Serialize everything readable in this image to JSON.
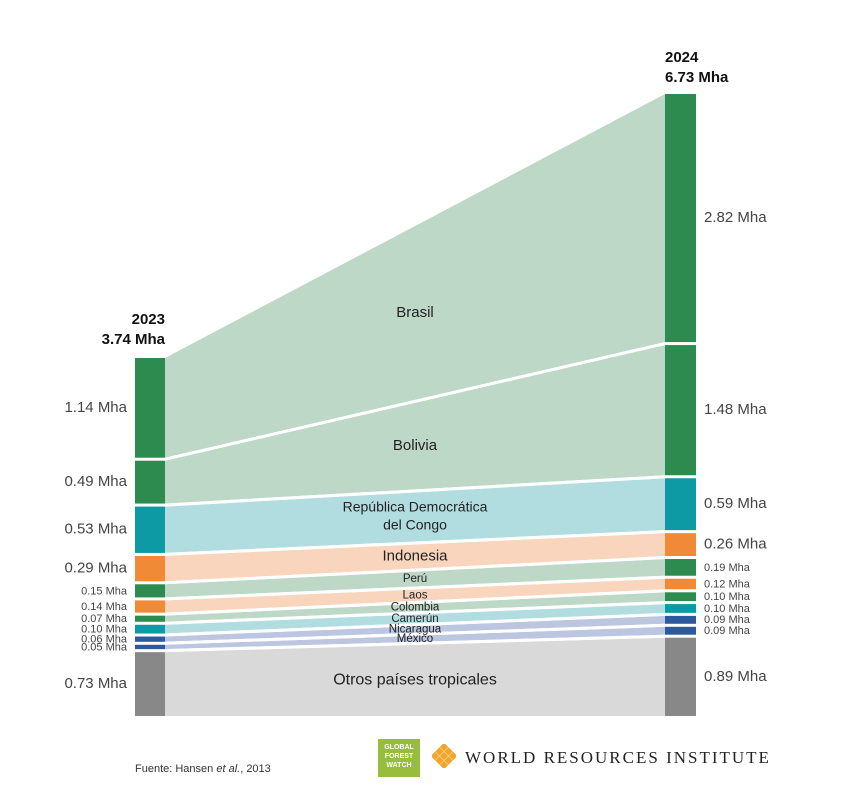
{
  "chart_data": {
    "type": "sankey",
    "left_header": {
      "year": "2023",
      "total": "3.74 Mha"
    },
    "right_header": {
      "year": "2024",
      "total": "6.73 Mha"
    },
    "series": [
      {
        "name": "Brasil",
        "v2023": 1.14,
        "v2024": 2.82,
        "label2023": "1.14 Mha",
        "label2024": "2.82 Mha",
        "bar": "#2e8b4f",
        "flow": "#bdd8c6",
        "multiline": false
      },
      {
        "name": "Bolivia",
        "v2023": 0.49,
        "v2024": 1.48,
        "label2023": "0.49 Mha",
        "label2024": "1.48 Mha",
        "bar": "#2e8b4f",
        "flow": "#bdd8c6",
        "multiline": false
      },
      {
        "name": "República Democrática del Congo",
        "lines": [
          "República Democrática",
          "del Congo"
        ],
        "v2023": 0.53,
        "v2024": 0.59,
        "label2023": "0.53 Mha",
        "label2024": "0.59 Mha",
        "bar": "#0e9aa4",
        "flow": "#b2dde0",
        "multiline": true
      },
      {
        "name": "Indonesia",
        "v2023": 0.29,
        "v2024": 0.26,
        "label2023": "0.29 Mha",
        "label2024": "0.26 Mha",
        "bar": "#f08a36",
        "flow": "#f8d5bc",
        "multiline": false
      },
      {
        "name": "Perú",
        "v2023": 0.15,
        "v2024": 0.19,
        "label2023": "0.15 Mha",
        "label2024": "0.19 Mha",
        "bar": "#2e8b4f",
        "flow": "#bdd8c6",
        "multiline": false
      },
      {
        "name": "Laos",
        "v2023": 0.14,
        "v2024": 0.12,
        "label2023": "0.14 Mha",
        "label2024": "0.12 Mha",
        "bar": "#f08a36",
        "flow": "#f8d5bc",
        "multiline": false
      },
      {
        "name": "Colombia",
        "v2023": 0.07,
        "v2024": 0.1,
        "label2023": "0.07 Mha",
        "label2024": "0.10 Mha",
        "bar": "#2e8b4f",
        "flow": "#bdd8c6",
        "multiline": false
      },
      {
        "name": "Camerún",
        "v2023": 0.1,
        "v2024": 0.1,
        "label2023": "0.10 Mha",
        "label2024": "0.10 Mha",
        "bar": "#0e9aa4",
        "flow": "#b2dde0",
        "multiline": false
      },
      {
        "name": "Nicaragua",
        "v2023": 0.06,
        "v2024": 0.09,
        "label2023": "0.06 Mha",
        "label2024": "0.09 Mha",
        "bar": "#2d5a9e",
        "flow": "#bcc6e0",
        "multiline": false
      },
      {
        "name": "México",
        "v2023": 0.05,
        "v2024": 0.09,
        "label2023": "0.05 Mha",
        "label2024": "0.09 Mha",
        "bar": "#2d5a9e",
        "flow": "#bcc6e0",
        "multiline": false
      },
      {
        "name": "Otros países tropicales",
        "v2023": 0.73,
        "v2024": 0.89,
        "label2023": "0.73 Mha",
        "label2024": "0.89 Mha",
        "bar": "#888888",
        "flow": "#d9d9d9",
        "multiline": false
      }
    ]
  },
  "footer": {
    "source_prefix": "Fuente: Hansen ",
    "source_italic": "et al.",
    "source_suffix": ", 2013",
    "gfw_logo": [
      "GLOBAL",
      "FOREST",
      "WATCH"
    ],
    "wri_name": "WORLD RESOURCES INSTITUTE",
    "wri_icon": "wri-knot-icon",
    "wri_color": "#f2a52b"
  }
}
